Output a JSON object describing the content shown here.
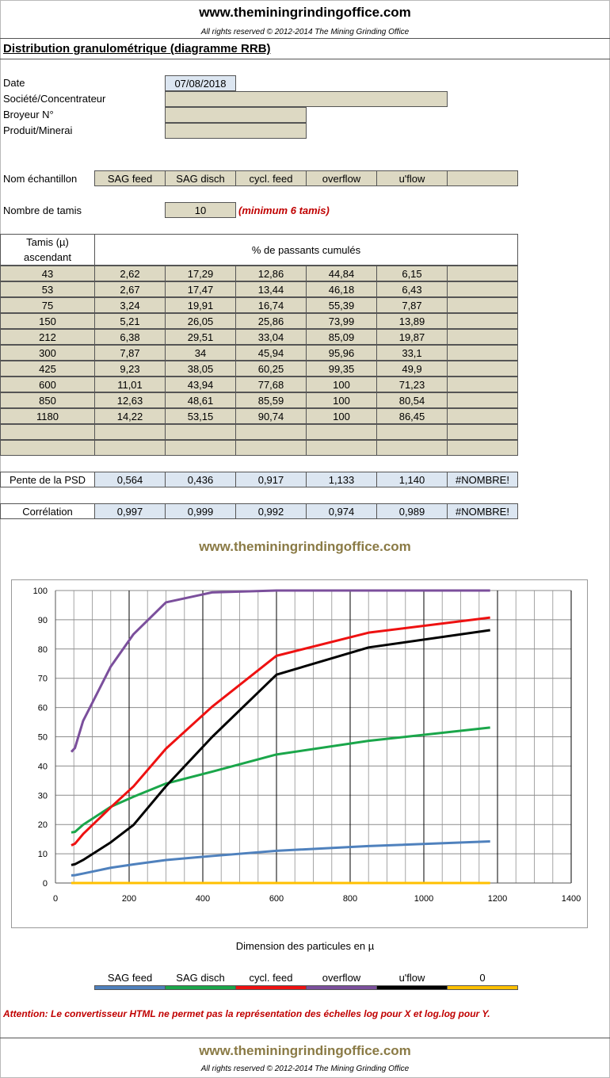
{
  "header": {
    "site": "www.theminingrindingoffice.com",
    "rights": "All rights reserved © 2012-2014 The Mining Grinding Office"
  },
  "title": "Distribution granulométrique (diagramme RRB)",
  "form": {
    "date_label": "Date",
    "date_value": "07/08/2018",
    "company_label": "Société/Concentrateur",
    "company_value": "",
    "mill_label": "Broyeur N°",
    "mill_value": "",
    "product_label": "Produit/Minerai",
    "product_value": ""
  },
  "samples": {
    "label": "Nom échantillon",
    "names": [
      "SAG feed",
      "SAG disch",
      "cycl. feed",
      "overflow",
      "u'flow",
      ""
    ]
  },
  "sieves": {
    "label": "Nombre de tamis",
    "value": "10",
    "note": "(minimum 6 tamis)"
  },
  "table": {
    "col1_header_line1": "Tamis (µ)",
    "col1_header_line2": "ascendant",
    "values_header": "% de passants cumulés",
    "rows": [
      [
        "43",
        "2,62",
        "17,29",
        "12,86",
        "44,84",
        "6,15",
        ""
      ],
      [
        "53",
        "2,67",
        "17,47",
        "13,44",
        "46,18",
        "6,43",
        ""
      ],
      [
        "75",
        "3,24",
        "19,91",
        "16,74",
        "55,39",
        "7,87",
        ""
      ],
      [
        "150",
        "5,21",
        "26,05",
        "25,86",
        "73,99",
        "13,89",
        ""
      ],
      [
        "212",
        "6,38",
        "29,51",
        "33,04",
        "85,09",
        "19,87",
        ""
      ],
      [
        "300",
        "7,87",
        "34",
        "45,94",
        "95,96",
        "33,1",
        ""
      ],
      [
        "425",
        "9,23",
        "38,05",
        "60,25",
        "99,35",
        "49,9",
        ""
      ],
      [
        "600",
        "11,01",
        "43,94",
        "77,68",
        "100",
        "71,23",
        ""
      ],
      [
        "850",
        "12,63",
        "48,61",
        "85,59",
        "100",
        "80,54",
        ""
      ],
      [
        "1180",
        "14,22",
        "53,15",
        "90,74",
        "100",
        "86,45",
        ""
      ],
      [
        "",
        "",
        "",
        "",
        "",
        "",
        ""
      ],
      [
        "",
        "",
        "",
        "",
        "",
        "",
        ""
      ]
    ]
  },
  "slope": {
    "label": "Pente de la PSD",
    "values": [
      "0,564",
      "0,436",
      "0,917",
      "1,133",
      "1,140",
      "#NOMBRE!"
    ]
  },
  "correlation": {
    "label": "Corrélation",
    "values": [
      "0,997",
      "0,999",
      "0,992",
      "0,974",
      "0,989",
      "#NOMBRE!"
    ]
  },
  "mid_site": "www.theminingrindingoffice.com",
  "chart_data": {
    "type": "line",
    "xlabel": "Dimension des particules en µ",
    "ylabel": "",
    "xlim": [
      0,
      1400
    ],
    "ylim": [
      0,
      100
    ],
    "xticks": [
      0,
      200,
      400,
      600,
      800,
      1000,
      1200,
      1400
    ],
    "yticks": [
      0,
      10,
      20,
      30,
      40,
      50,
      60,
      70,
      80,
      90,
      100
    ],
    "grid": true,
    "legend_position": "bottom",
    "x": [
      43,
      53,
      75,
      150,
      212,
      300,
      425,
      600,
      850,
      1180
    ],
    "series": [
      {
        "name": "SAG feed",
        "color": "#4f81bd",
        "values": [
          2.62,
          2.67,
          3.24,
          5.21,
          6.38,
          7.87,
          9.23,
          11.01,
          12.63,
          14.22
        ]
      },
      {
        "name": "SAG disch",
        "color": "#1aa64a",
        "values": [
          17.29,
          17.47,
          19.91,
          26.05,
          29.51,
          34,
          38.05,
          43.94,
          48.61,
          53.15
        ]
      },
      {
        "name": "cycl. feed",
        "color": "#ee1111",
        "values": [
          12.86,
          13.44,
          16.74,
          25.86,
          33.04,
          45.94,
          60.25,
          77.68,
          85.59,
          90.74
        ]
      },
      {
        "name": "overflow",
        "color": "#7b4f9c",
        "values": [
          44.84,
          46.18,
          55.39,
          73.99,
          85.09,
          95.96,
          99.35,
          100,
          100,
          100
        ]
      },
      {
        "name": "u'flow",
        "color": "#000000",
        "values": [
          6.15,
          6.43,
          7.87,
          13.89,
          19.87,
          33.1,
          49.9,
          71.23,
          80.54,
          86.45
        ]
      },
      {
        "name": "0",
        "color": "#ffc000",
        "values": [
          0,
          0,
          0,
          0,
          0,
          0,
          0,
          0,
          0,
          0
        ]
      }
    ]
  },
  "attention": "Attention: Le convertisseur HTML ne permet pas la représentation des échelles log pour X et log.log pour Y.",
  "footer": {
    "site": "www.theminingrindingoffice.com",
    "rights": "All rights reserved © 2012-2014 The Mining Grinding Office"
  }
}
